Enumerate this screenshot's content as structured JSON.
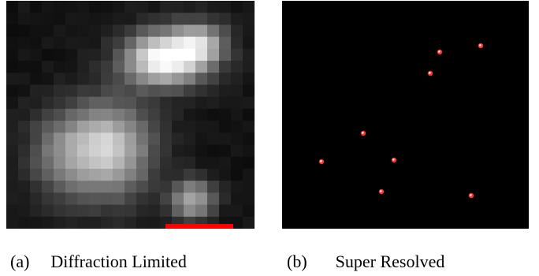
{
  "panel_a": {
    "label": "(a)",
    "caption": "Diffraction Limited",
    "scale_bar_color": "#ff0000"
  },
  "panel_b": {
    "label": "(b)",
    "caption": "Super Resolved",
    "marker_color": "#ff3030"
  }
}
